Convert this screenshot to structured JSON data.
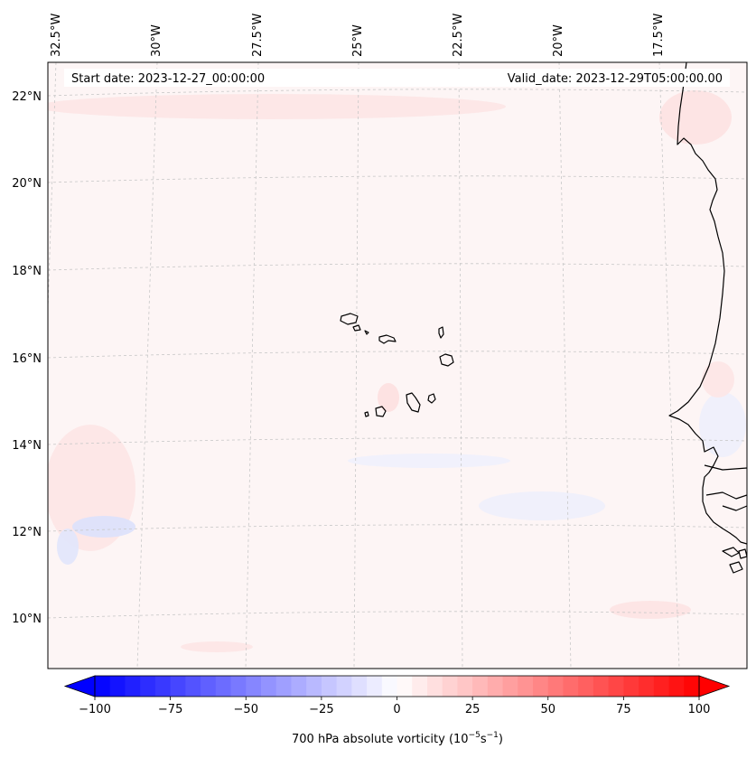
{
  "header": {
    "start_date": "Start date: 2023-12-27_00:00:00",
    "valid_date": "Valid_date: 2023-12-29T05:00:00.00"
  },
  "map": {
    "longitude_labels": [
      "32.5°W",
      "30°W",
      "27.5°W",
      "25°W",
      "22.5°W",
      "20°W",
      "17.5°W"
    ],
    "latitude_labels": [
      "22°N",
      "20°N",
      "18°N",
      "16°N",
      "14°N",
      "12°N",
      "10°N"
    ],
    "background_color": "#fdf5f5",
    "coastline_color": "#000000"
  },
  "colorbar": {
    "ticks": [
      "−100",
      "−75",
      "−50",
      "−25",
      "0",
      "25",
      "50",
      "75",
      "100"
    ],
    "tick_values": [
      -100,
      -75,
      -50,
      -25,
      0,
      25,
      50,
      75,
      100
    ],
    "label_main": "700 hPa absolute vorticity (10",
    "label_exp1": "−5",
    "label_mid": "s",
    "label_exp2": "−1",
    "label_end": ")",
    "min": -100,
    "max": 100,
    "step": 5,
    "cmap": "bwr",
    "colors": {
      "neg": "#0000ff",
      "mid": "#ffffff",
      "pos": "#ff0000"
    }
  }
}
